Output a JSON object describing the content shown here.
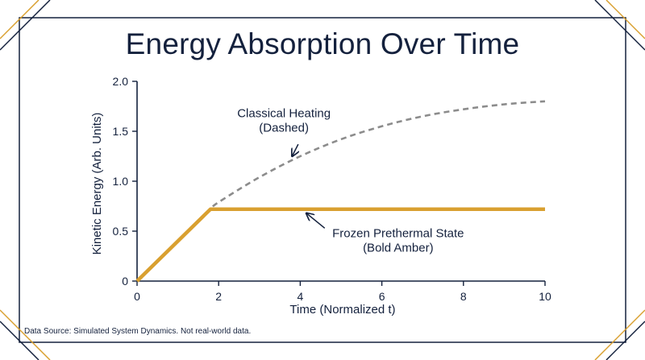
{
  "title": "Energy Absorption Over Time",
  "source_note": "Data Source: Simulated System Dynamics. Not real-world data.",
  "colors": {
    "navy": "#14213d",
    "amber": "#d9a030",
    "classical": "#8c8c8c"
  },
  "chart_data": {
    "type": "line",
    "xlabel": "Time (Normalized t)",
    "ylabel": "Kinetic Energy (Arb. Units)",
    "xlim": [
      0,
      10
    ],
    "ylim": [
      0,
      2.0
    ],
    "xticks": [
      0,
      2,
      4,
      6,
      8,
      10
    ],
    "xtick_labels": [
      "0",
      "2",
      "4",
      "6",
      "8",
      "10"
    ],
    "yticks": [
      0,
      0.5,
      1.0,
      1.5,
      2.0
    ],
    "ytick_labels": [
      "0",
      "0.5",
      "1.0",
      "1.5",
      "2.0"
    ],
    "grid": false,
    "series": [
      {
        "style": "dashed",
        "color": "#8c8c8c",
        "x": [
          0,
          0.5,
          1,
          1.5,
          1.8,
          2,
          3,
          4,
          5,
          6,
          7,
          8,
          9,
          10
        ],
        "y": [
          0,
          0.2,
          0.4,
          0.6,
          0.72,
          0.79,
          1.04,
          1.25,
          1.42,
          1.55,
          1.65,
          1.72,
          1.77,
          1.8
        ]
      },
      {
        "style": "solid-bold",
        "color": "#d9a030",
        "x": [
          0,
          1.8,
          10
        ],
        "y": [
          0,
          0.72,
          0.72
        ]
      }
    ],
    "annotations": [
      {
        "lines": [
          "Classical Heating",
          "(Dashed)"
        ],
        "text_at": [
          3.6,
          1.64
        ],
        "arrow_from": [
          3.95,
          1.37
        ],
        "arrow_to": [
          3.8,
          1.25
        ]
      },
      {
        "lines": [
          "Frozen Prethermal State",
          "(Bold Amber)"
        ],
        "text_at": [
          6.4,
          0.44
        ],
        "arrow_from": [
          4.6,
          0.53
        ],
        "arrow_to": [
          4.15,
          0.68
        ]
      }
    ]
  }
}
